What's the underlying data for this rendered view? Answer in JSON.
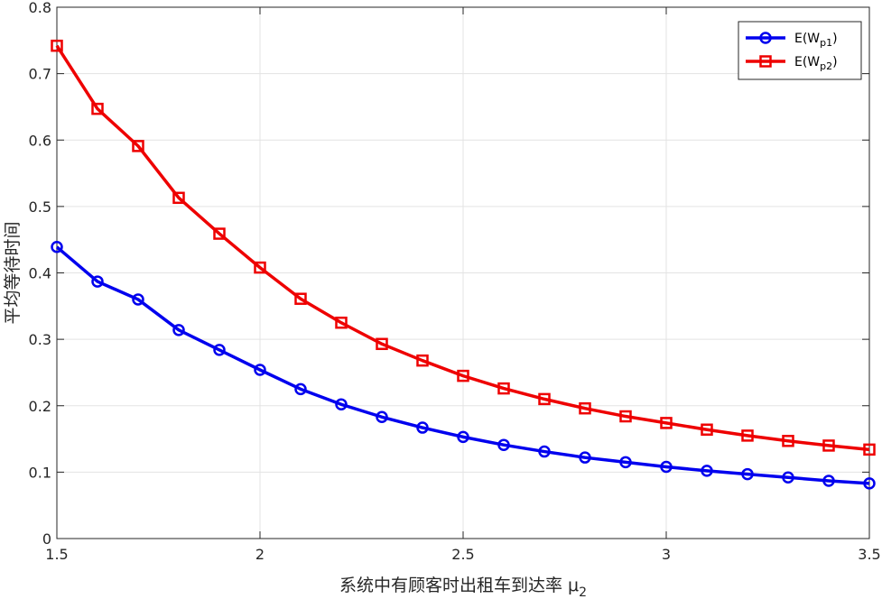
{
  "chart_data": {
    "type": "line",
    "title": "",
    "xlabel": "系统中有顾客时出租车到达率 μ",
    "xlabel_sub": "2",
    "ylabel": "平均等待时间",
    "xlim": [
      1.5,
      3.5
    ],
    "ylim": [
      0,
      0.8
    ],
    "x_ticks": [
      "1.5",
      "2",
      "2.5",
      "3",
      "3.5"
    ],
    "y_ticks": [
      "0",
      "0.1",
      "0.2",
      "0.3",
      "0.4",
      "0.5",
      "0.6",
      "0.7",
      "0.8"
    ],
    "grid": true,
    "legend_position": "top-right",
    "x": [
      1.5,
      1.6,
      1.7,
      1.8,
      1.9,
      2.0,
      2.1,
      2.2,
      2.3,
      2.4,
      2.5,
      2.6,
      2.7,
      2.8,
      2.9,
      3.0,
      3.1,
      3.2,
      3.3,
      3.4,
      3.5
    ],
    "series": [
      {
        "name": "E(W",
        "name_sub": "p1",
        "name_end": ")",
        "color": "#0000ee",
        "marker": "circle",
        "values": [
          0.439,
          0.387,
          0.36,
          0.314,
          0.284,
          0.254,
          0.225,
          0.202,
          0.183,
          0.167,
          0.153,
          0.141,
          0.131,
          0.122,
          0.115,
          0.108,
          0.102,
          0.097,
          0.092,
          0.087,
          0.083
        ]
      },
      {
        "name": "E(W",
        "name_sub": "p2",
        "name_end": ")",
        "color": "#ee0000",
        "marker": "square",
        "values": [
          0.742,
          0.647,
          0.591,
          0.513,
          0.459,
          0.408,
          0.361,
          0.325,
          0.293,
          0.268,
          0.245,
          0.226,
          0.21,
          0.196,
          0.184,
          0.174,
          0.164,
          0.155,
          0.147,
          0.14,
          0.134
        ]
      }
    ]
  }
}
